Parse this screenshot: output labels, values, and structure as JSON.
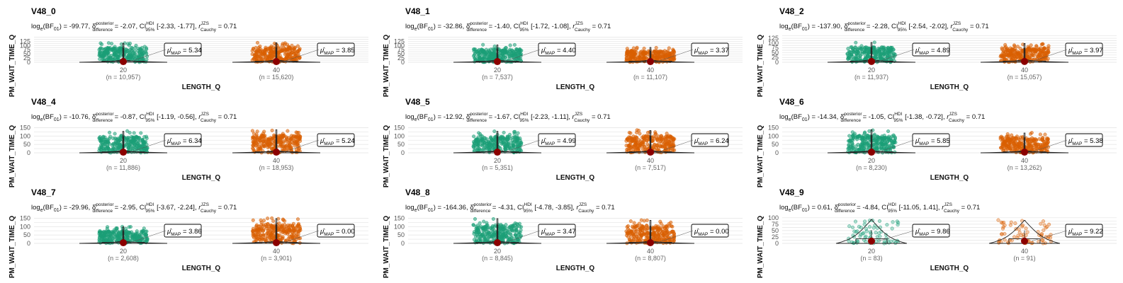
{
  "chart_data": [
    {
      "type": "violin",
      "title": "V48_0",
      "subtitle": "logₑ(BF₀₁) = -99.77, δ̂ posterior difference = -2.07, CI HDI 95% [-2.33, -1.77], r JZS Cauchy = 0.71",
      "log_bf01": "-99.77",
      "delta": "-2.07",
      "ci": "[-2.33, -1.77]",
      "r": "0.71",
      "xlabel": "LENGTH_Q",
      "ylabel": "PM_WAIT_TIME_Q",
      "yticks": [
        0,
        25,
        50,
        75,
        100,
        125
      ],
      "ylim": [
        0,
        160
      ],
      "groups": [
        {
          "x": "20",
          "n": "(n = 10,957)",
          "mu_map": "5.34",
          "max": 115
        },
        {
          "x": "40",
          "n": "(n = 15,620)",
          "mu_map": "3.85",
          "max": 118
        }
      ]
    },
    {
      "type": "violin",
      "title": "V48_1",
      "subtitle": "logₑ(BF₀₁) = -32.86, δ̂ posterior difference = -1.40, CI HDI 95% [-1.72, -1.08], r JZS Cauchy = 0.71",
      "log_bf01": "-32.86",
      "delta": "-1.40",
      "ci": "[-1.72, -1.08]",
      "r": "0.71",
      "xlabel": "LENGTH_Q",
      "ylabel": "PM_WAIT_TIME_Q",
      "yticks": [
        0,
        25,
        50,
        75,
        100,
        125
      ],
      "ylim": [
        0,
        160
      ],
      "groups": [
        {
          "x": "20",
          "n": "(n = 7,537)",
          "mu_map": "4.40",
          "max": 105
        },
        {
          "x": "40",
          "n": "(n = 11,107)",
          "mu_map": "3.37",
          "max": 90
        }
      ]
    },
    {
      "type": "violin",
      "title": "V48_2",
      "subtitle": "logₑ(BF₀₁) = -137.90, δ̂ posterior difference = -2.28, CI HDI 95% [-2.54, -2.02], r JZS Cauchy = 0.71",
      "log_bf01": "-137.90",
      "delta": "-2.28",
      "ci": "[-2.54, -2.02]",
      "r": "0.71",
      "xlabel": "LENGTH_Q",
      "ylabel": "PM_WAIT_TIME_Q",
      "yticks": [
        0,
        25,
        50,
        75,
        100,
        125
      ],
      "ylim": [
        0,
        140
      ],
      "groups": [
        {
          "x": "20",
          "n": "(n = 11,937)",
          "mu_map": "4.89",
          "max": 105
        },
        {
          "x": "40",
          "n": "(n = 15,057)",
          "mu_map": "3.97",
          "max": 100
        }
      ]
    },
    {
      "type": "violin",
      "title": "V48_4",
      "subtitle": "logₑ(BF₀₁) = -10.76, δ̂ posterior difference = -0.87, CI HDI 95% [-1.19, -0.56], r JZS Cauchy = 0.71",
      "log_bf01": "-10.76",
      "delta": "-0.87",
      "ci": "[-1.19, -0.56]",
      "r": "0.71",
      "xlabel": "LENGTH_Q",
      "ylabel": "PM_WAIT_TIME_Q",
      "yticks": [
        0,
        50,
        100,
        150
      ],
      "ylim": [
        0,
        160
      ],
      "groups": [
        {
          "x": "20",
          "n": "(n = 11,886)",
          "mu_map": "6.34",
          "max": 130
        },
        {
          "x": "40",
          "n": "(n = 18,953)",
          "mu_map": "5.24",
          "max": 140
        }
      ]
    },
    {
      "type": "violin",
      "title": "V48_5",
      "subtitle": "logₑ(BF₀₁) = -12.92, δ̂ posterior difference = -1.67, CI HDI 95% [-2.23, -1.11], r JZS Cauchy = 0.71",
      "log_bf01": "-12.92",
      "delta": "-1.67",
      "ci": "[-2.23, -1.11]",
      "r": "0.71",
      "xlabel": "LENGTH_Q",
      "ylabel": "PM_WAIT_TIME_Q",
      "yticks": [
        0,
        50,
        100,
        150
      ],
      "ylim": [
        0,
        160
      ],
      "groups": [
        {
          "x": "20",
          "n": "(n = 5,351)",
          "mu_map": "4.99",
          "max": 130
        },
        {
          "x": "40",
          "n": "(n = 7,517)",
          "mu_map": "6.24",
          "max": 135
        }
      ]
    },
    {
      "type": "violin",
      "title": "V48_6",
      "subtitle": "logₑ(BF₀₁) = -14.34, δ̂ posterior difference = -1.05, CI HDI 95% [-1.38, -0.72], r JZS Cauchy = 0.71",
      "log_bf01": "-14.34",
      "delta": "-1.05",
      "ci": "[-1.38, -0.72]",
      "r": "0.71",
      "xlabel": "LENGTH_Q",
      "ylabel": "PM_WAIT_TIME_Q",
      "yticks": [
        0,
        50,
        100,
        150
      ],
      "ylim": [
        0,
        160
      ],
      "groups": [
        {
          "x": "20",
          "n": "(n = 8,230)",
          "mu_map": "5.85",
          "max": 140
        },
        {
          "x": "40",
          "n": "(n = 13,262)",
          "mu_map": "5.38",
          "max": 120
        }
      ]
    },
    {
      "type": "violin",
      "title": "V48_7",
      "subtitle": "logₑ(BF₀₁) = -29.96, δ̂ posterior difference = -2.95, CI HDI 95% [-3.67, -2.24], r JZS Cauchy = 0.71",
      "log_bf01": "-29.96",
      "delta": "-2.95",
      "ci": "[-3.67, -2.24]",
      "r": "0.71",
      "xlabel": "LENGTH_Q",
      "ylabel": "PM_WAIT_TIME_Q",
      "yticks": [
        0,
        50,
        100,
        150
      ],
      "ylim": [
        0,
        160
      ],
      "groups": [
        {
          "x": "20",
          "n": "(n = 2,608)",
          "mu_map": "3.86",
          "max": 100
        },
        {
          "x": "40",
          "n": "(n = 3,901)",
          "mu_map": "0.00",
          "max": 150
        }
      ]
    },
    {
      "type": "violin",
      "title": "V48_8",
      "subtitle": "logₑ(BF₀₁) = -164.36, δ̂ posterior difference = -4.31, CI HDI 95% [-4.78, -3.85], r JZS Cauchy = 0.71",
      "log_bf01": "-164.36",
      "delta": "-4.31",
      "ci": "[-4.78, -3.85]",
      "r": "0.71",
      "xlabel": "LENGTH_Q",
      "ylabel": "PM_WAIT_TIME_Q",
      "yticks": [
        0,
        50,
        100,
        150
      ],
      "ylim": [
        0,
        160
      ],
      "groups": [
        {
          "x": "20",
          "n": "(n = 8,845)",
          "mu_map": "3.47",
          "max": 150
        },
        {
          "x": "40",
          "n": "(n = 8,807)",
          "mu_map": "0.00",
          "max": 140
        }
      ]
    },
    {
      "type": "violin",
      "title": "V48_9",
      "subtitle": "logₑ(BF₀₁) = 0.61, δ̂ posterior difference = -4.84, CI HDI 95% [-11.05, 1.41], r JZS Cauchy = 0.71",
      "log_bf01": "0.61",
      "delta": "-4.84",
      "ci": "[-11.05, 1.41]",
      "r": "0.71",
      "xlabel": "LENGTH_Q",
      "ylabel": "PM_WAIT_TIME_Q",
      "yticks": [
        0,
        25,
        50,
        75,
        100
      ],
      "ylim": [
        0,
        105
      ],
      "groups": [
        {
          "x": "20",
          "n": "(n = 83)",
          "mu_map": "9.86",
          "max": 95
        },
        {
          "x": "40",
          "n": "(n = 91)",
          "mu_map": "9.22",
          "max": 92
        }
      ]
    }
  ],
  "colors": {
    "group_20": "#1b9e77",
    "group_40": "#d95f02",
    "mean_point": "#8b0000",
    "grid": "#e3e3e3"
  }
}
